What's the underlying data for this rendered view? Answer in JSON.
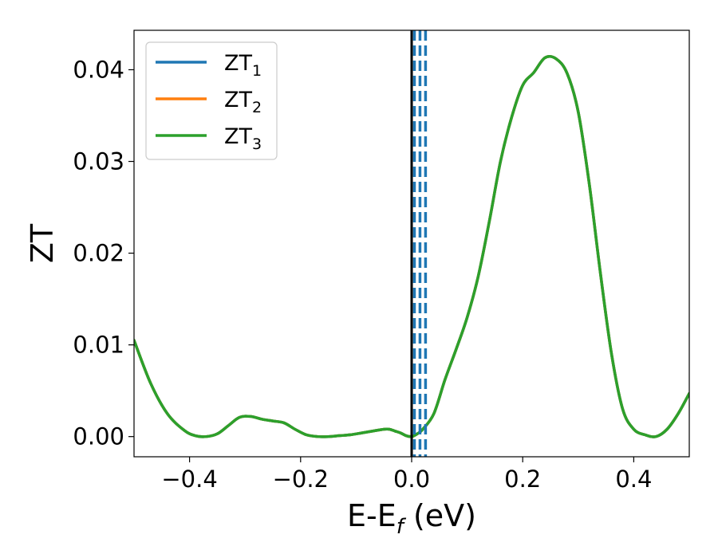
{
  "chart_data": {
    "type": "line",
    "xlabel": {
      "main": "E-E",
      "sub": "f",
      "unit": " (eV)"
    },
    "ylabel": "ZT",
    "xlim": [
      -0.5,
      0.5
    ],
    "ylim": [
      -0.0022,
      0.0443
    ],
    "xticks": [
      -0.4,
      -0.2,
      0.0,
      0.2,
      0.4
    ],
    "xtick_labels": [
      "−0.4",
      "−0.2",
      "0.0",
      "0.2",
      "0.4"
    ],
    "yticks": [
      0.0,
      0.01,
      0.02,
      0.03,
      0.04
    ],
    "ytick_labels": [
      "0.00",
      "0.01",
      "0.02",
      "0.03",
      "0.04"
    ],
    "grid": false,
    "legend_position": "top-left",
    "legend": [
      {
        "base": "ZT",
        "sub": "1",
        "color": "#1f77b4"
      },
      {
        "base": "ZT",
        "sub": "2",
        "color": "#ff7f0e"
      },
      {
        "base": "ZT",
        "sub": "3",
        "color": "#2ca02c"
      }
    ],
    "x": [
      -0.5,
      -0.47,
      -0.44,
      -0.41,
      -0.39,
      -0.37,
      -0.35,
      -0.33,
      -0.31,
      -0.29,
      -0.27,
      -0.25,
      -0.23,
      -0.21,
      -0.19,
      -0.17,
      -0.15,
      -0.13,
      -0.11,
      -0.09,
      -0.07,
      -0.05,
      -0.04,
      -0.03,
      -0.02,
      -0.01,
      0.0,
      0.01,
      0.02,
      0.04,
      0.06,
      0.08,
      0.1,
      0.12,
      0.14,
      0.16,
      0.18,
      0.2,
      0.22,
      0.24,
      0.26,
      0.28,
      0.3,
      0.32,
      0.34,
      0.36,
      0.38,
      0.4,
      0.42,
      0.44,
      0.46,
      0.48,
      0.5
    ],
    "series": [
      {
        "values": [
          0.0105,
          0.0058,
          0.0025,
          0.0007,
          0.0001,
          0.0,
          0.0003,
          0.0012,
          0.0021,
          0.0022,
          0.0019,
          0.0017,
          0.0015,
          0.0008,
          0.0002,
          0.0,
          0.0,
          0.0001,
          0.0002,
          0.0004,
          0.0006,
          0.0008,
          0.0008,
          0.0006,
          0.0004,
          0.0001,
          0.0,
          0.0003,
          0.0008,
          0.0025,
          0.0062,
          0.0095,
          0.013,
          0.0175,
          0.0235,
          0.03,
          0.0348,
          0.0383,
          0.0397,
          0.0413,
          0.0412,
          0.0396,
          0.0354,
          0.0275,
          0.0178,
          0.009,
          0.003,
          0.0008,
          0.0002,
          0.0,
          0.0008,
          0.0025,
          0.0047
        ],
        "color": "#1f77b4"
      },
      {
        "values": [
          0.0105,
          0.0058,
          0.0025,
          0.0007,
          0.0001,
          0.0,
          0.0003,
          0.0012,
          0.0021,
          0.0022,
          0.0019,
          0.0017,
          0.0015,
          0.0008,
          0.0002,
          0.0,
          0.0,
          0.0001,
          0.0002,
          0.0004,
          0.0006,
          0.0008,
          0.0008,
          0.0006,
          0.0004,
          0.0001,
          0.0,
          0.0003,
          0.0008,
          0.0025,
          0.0062,
          0.0095,
          0.013,
          0.0175,
          0.0235,
          0.03,
          0.0348,
          0.0383,
          0.0397,
          0.0413,
          0.0412,
          0.0396,
          0.0354,
          0.0275,
          0.0178,
          0.009,
          0.003,
          0.0008,
          0.0002,
          0.0,
          0.0008,
          0.0025,
          0.0047
        ],
        "color": "#ff7f0e"
      },
      {
        "values": [
          0.0105,
          0.0058,
          0.0025,
          0.0007,
          0.0001,
          0.0,
          0.0003,
          0.0012,
          0.0021,
          0.0022,
          0.0019,
          0.0017,
          0.0015,
          0.0008,
          0.0002,
          0.0,
          0.0,
          0.0001,
          0.0002,
          0.0004,
          0.0006,
          0.0008,
          0.0008,
          0.0006,
          0.0004,
          0.0001,
          0.0,
          0.0003,
          0.0008,
          0.0025,
          0.0062,
          0.0095,
          0.013,
          0.0175,
          0.0235,
          0.03,
          0.0348,
          0.0383,
          0.0397,
          0.0413,
          0.0412,
          0.0396,
          0.0354,
          0.0275,
          0.0178,
          0.009,
          0.003,
          0.0008,
          0.0002,
          0.0,
          0.0008,
          0.0025,
          0.0047
        ],
        "color": "#2ca02c"
      }
    ],
    "vlines": [
      {
        "x": 0.0,
        "color": "#000000",
        "style": "solid"
      },
      {
        "x": 0.005,
        "color": "#1f77b4",
        "style": "dashed"
      },
      {
        "x": 0.015,
        "color": "#1f77b4",
        "style": "dashed"
      },
      {
        "x": 0.025,
        "color": "#1f77b4",
        "style": "dashed"
      }
    ]
  }
}
